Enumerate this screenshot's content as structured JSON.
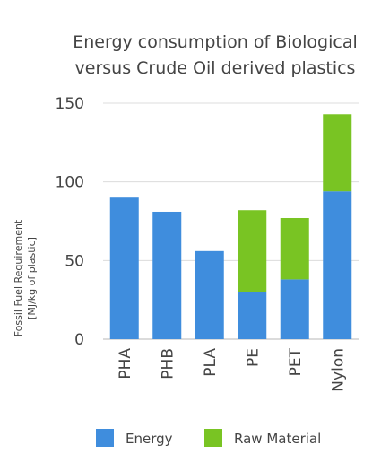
{
  "chart_data": {
    "type": "bar",
    "stacked": true,
    "title_lines": [
      "Energy consumption of Biological",
      "versus Crude Oil derived plastics"
    ],
    "ylabel_lines": [
      "Fossil Fuel Requirement",
      "[MJ/kg of plastic]"
    ],
    "xlabel": "",
    "categories": [
      "PHA",
      "PHB",
      "PLA",
      "PE",
      "PET",
      "Nylon"
    ],
    "series": [
      {
        "name": "Energy",
        "color": "#3f8ddd",
        "values": [
          90,
          81,
          56,
          30,
          38,
          94
        ]
      },
      {
        "name": "Raw Material",
        "color": "#79c423",
        "values": [
          0,
          0,
          0,
          52,
          39,
          49
        ]
      }
    ],
    "ylim": [
      0,
      150
    ],
    "yticks": [
      0,
      50,
      100,
      150
    ],
    "grid": true,
    "legend_position": "bottom"
  }
}
